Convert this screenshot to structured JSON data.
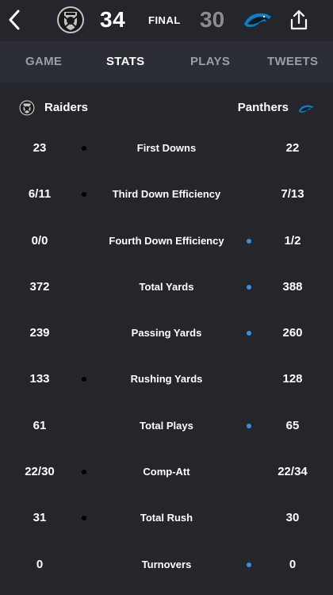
{
  "header": {
    "home_score": "34",
    "status": "FINAL",
    "away_score": "30"
  },
  "tabs": [
    {
      "label": "GAME",
      "active": false
    },
    {
      "label": "STATS",
      "active": true
    },
    {
      "label": "PLAYS",
      "active": false
    },
    {
      "label": "TWEETS",
      "active": false
    }
  ],
  "teams": {
    "home": {
      "name": "Raiders",
      "logo_icon": "raiders-shield-icon"
    },
    "away": {
      "name": "Panthers",
      "logo_icon": "panther-icon"
    }
  },
  "colors": {
    "background": "#24262c",
    "tab_bar": "#2b2e35",
    "home_leader_dot": "#000000",
    "away_leader_dot": "#3a8fd6"
  },
  "stats": [
    {
      "label": "First Downs",
      "home": "23",
      "away": "22",
      "leader": "home"
    },
    {
      "label": "Third Down Efficiency",
      "home": "6/11",
      "away": "7/13",
      "leader": "home"
    },
    {
      "label": "Fourth Down Efficiency",
      "home": "0/0",
      "away": "1/2",
      "leader": "away"
    },
    {
      "label": "Total Yards",
      "home": "372",
      "away": "388",
      "leader": "away"
    },
    {
      "label": "Passing Yards",
      "home": "239",
      "away": "260",
      "leader": "away"
    },
    {
      "label": "Rushing Yards",
      "home": "133",
      "away": "128",
      "leader": "home"
    },
    {
      "label": "Total Plays",
      "home": "61",
      "away": "65",
      "leader": "away"
    },
    {
      "label": "Comp-Att",
      "home": "22/30",
      "away": "22/34",
      "leader": "home"
    },
    {
      "label": "Total Rush",
      "home": "31",
      "away": "30",
      "leader": "home"
    },
    {
      "label": "Turnovers",
      "home": "0",
      "away": "0",
      "leader": "away"
    }
  ]
}
